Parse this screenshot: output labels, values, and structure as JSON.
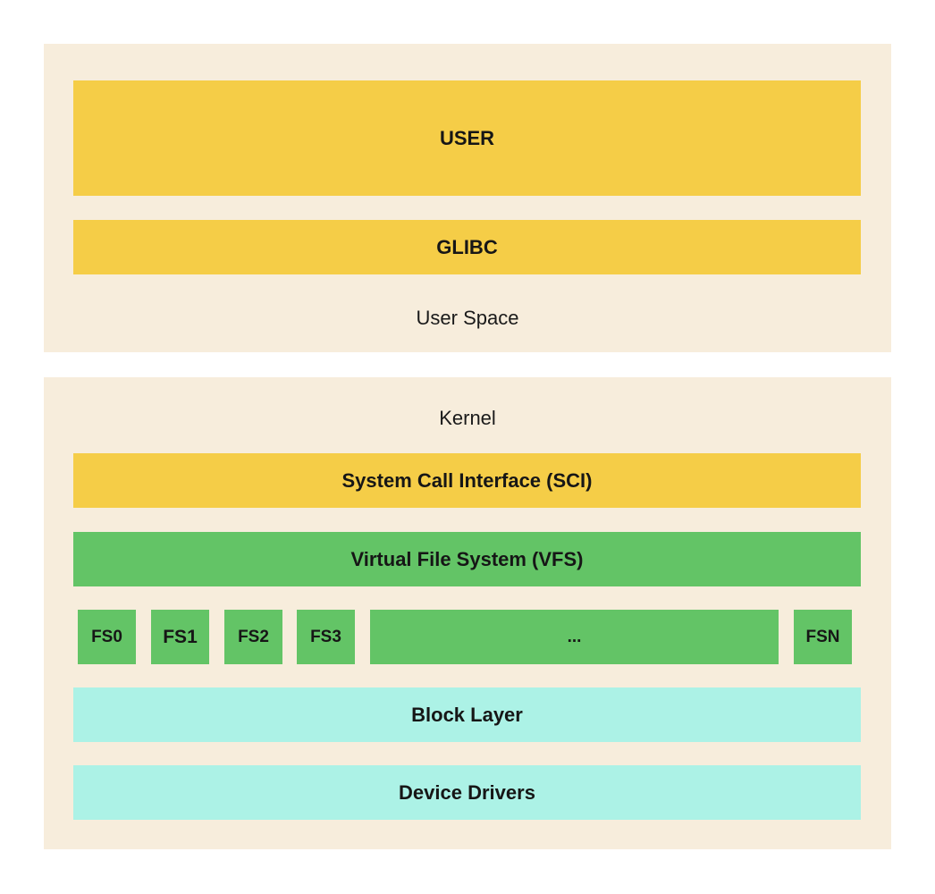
{
  "colors": {
    "panel_bg": "#f7eddc",
    "user_layer": "#f5cd47",
    "vfs_layer": "#63c466",
    "block_layer": "#acf2e6"
  },
  "user_space": {
    "caption": "User Space",
    "user_block": "USER",
    "glibc_block": "GLIBC"
  },
  "kernel": {
    "caption": "Kernel",
    "sci_block": "System Call Interface (SCI)",
    "vfs_block": "Virtual File System (VFS)",
    "filesystems": [
      "FS0",
      "FS1",
      "FS2",
      "FS3",
      "...",
      "FSN"
    ],
    "block_layer": "Block Layer",
    "device_drivers": "Device Drivers"
  }
}
